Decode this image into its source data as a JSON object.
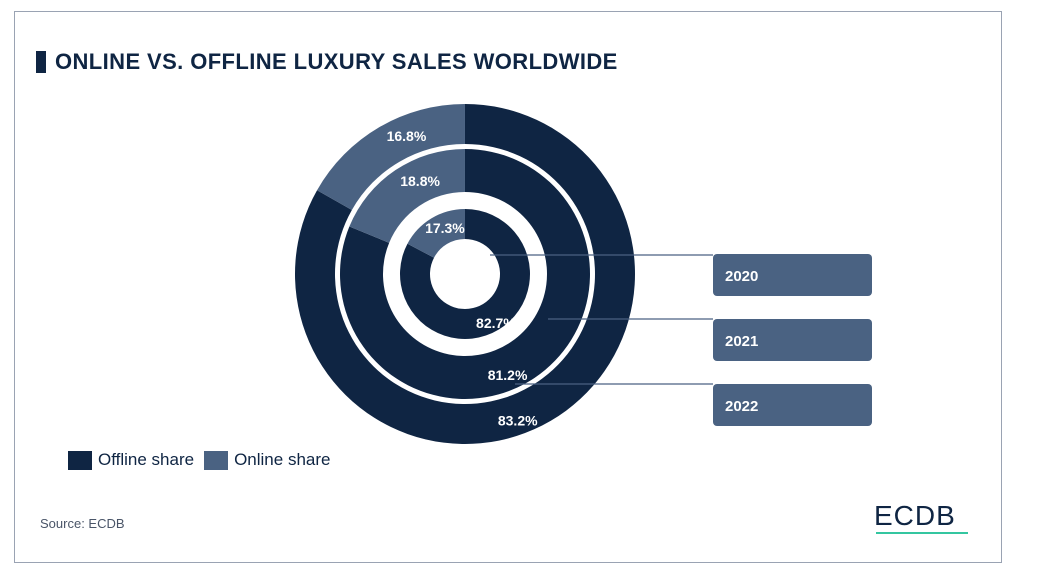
{
  "title": "ONLINE VS. OFFLINE LUXURY SALES WORLDWIDE",
  "source": "Source: ECDB",
  "logo": "ECDB",
  "colors": {
    "offline": "#0f2543",
    "online": "#4a6282",
    "accent": "#34c6a0"
  },
  "chart_data": {
    "type": "pie",
    "subtype": "nested-donut",
    "title": "ONLINE VS. OFFLINE LUXURY SALES WORLDWIDE",
    "legend": [
      "Offline share",
      "Online share"
    ],
    "legend_position": "bottom-left",
    "series": [
      {
        "name": "2020",
        "offline": 82.7,
        "online": 17.3,
        "offline_label": "82.7%",
        "online_label": "17.3%"
      },
      {
        "name": "2021",
        "offline": 81.2,
        "online": 18.8,
        "offline_label": "81.2%",
        "online_label": "18.8%"
      },
      {
        "name": "2022",
        "offline": 83.2,
        "online": 16.8,
        "offline_label": "83.2%",
        "online_label": "16.8%"
      }
    ]
  }
}
